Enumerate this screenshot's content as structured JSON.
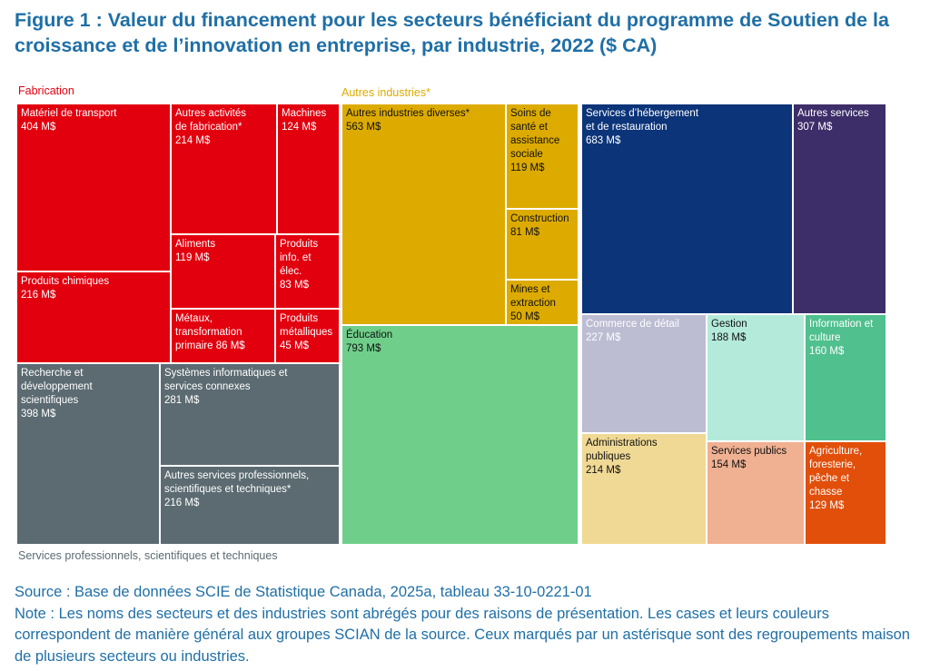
{
  "title": "Figure 1 : Valeur du financement pour les secteurs bénéficiant du programme de Soutien de la croissance et de l’innovation en entreprise, par industrie, 2022 ($ CA)",
  "colors": {
    "fabrication": "#e2000f",
    "autres_industries": "#ddab00",
    "services_pro": "#5c6b72",
    "education": "#6fcf8a",
    "hebergement": "#0b3479",
    "autres_services": "#3d2e6a",
    "commerce": "#bcbcd3",
    "gestion": "#b4eada",
    "information": "#4fc08e",
    "administrations": "#f0d994",
    "services_publics": "#f0b092",
    "agriculture": "#e14f0b",
    "title": "#1f6fa6"
  },
  "group_labels": {
    "fabrication": "Fabrication",
    "autres_industries": "Autres industries*",
    "services_pro": "Services professionnels, scientifiques et techniques"
  },
  "chart_data": {
    "type": "treemap",
    "unit": "M$",
    "groups": [
      {
        "name": "Fabrication",
        "items": [
          {
            "label": "Matériel de transport",
            "value": 404
          },
          {
            "label": "Produits chimiques",
            "value": 216
          },
          {
            "label": "Autres activités de fabrication*",
            "value": 214
          },
          {
            "label": "Machines",
            "value": 124
          },
          {
            "label": "Aliments",
            "value": 119
          },
          {
            "label": "Produits info. et élec.",
            "value": 83
          },
          {
            "label": "Métaux, transformation primaire",
            "value": 86
          },
          {
            "label": "Produits métalliques",
            "value": 45
          }
        ]
      },
      {
        "name": "Services professionnels, scientifiques et techniques",
        "items": [
          {
            "label": "Recherche et développement scientifiques",
            "value": 398
          },
          {
            "label": "Systèmes informatiques et services connexes",
            "value": 281
          },
          {
            "label": "Autres services professionnels, scientifiques et techniques*",
            "value": 216
          }
        ]
      },
      {
        "name": "Autres industries*",
        "items": [
          {
            "label": "Autres industries diverses*",
            "value": 563
          },
          {
            "label": "Soins de santé et assistance sociale",
            "value": 119
          },
          {
            "label": "Construction",
            "value": 81
          },
          {
            "label": "Mines et extraction",
            "value": 50
          },
          {
            "label": "Éducation",
            "value": 793
          },
          {
            "label": "Services d’hébergement et de restauration",
            "value": 683
          },
          {
            "label": "Autres services",
            "value": 307
          },
          {
            "label": "Commerce de détail",
            "value": 227
          },
          {
            "label": "Gestion",
            "value": 188
          },
          {
            "label": "Information et culture",
            "value": 160
          },
          {
            "label": "Administrations publiques",
            "value": 214
          },
          {
            "label": "Services publics",
            "value": 154
          },
          {
            "label": "Agriculture, foresterie, pêche et chasse",
            "value": 129
          }
        ]
      }
    ]
  },
  "cells": [
    {
      "id": "materiel-transport",
      "name": "Matériel de transport",
      "val": "404 M$",
      "color": "#e2000f",
      "text": "#ffffff"
    },
    {
      "id": "produits-chimiques",
      "name": "Produits chimiques",
      "val": "216 M$",
      "color": "#e2000f",
      "text": "#ffffff"
    },
    {
      "id": "autres-fabrication",
      "name": "Autres activités\nde fabrication*",
      "val": "214 M$",
      "color": "#e2000f",
      "text": "#ffffff"
    },
    {
      "id": "machines",
      "name": "Machines",
      "val": "124 M$",
      "color": "#e2000f",
      "text": "#ffffff"
    },
    {
      "id": "aliments",
      "name": "Aliments",
      "val": "119 M$",
      "color": "#e2000f",
      "text": "#ffffff"
    },
    {
      "id": "produits-info",
      "name": "Produits\ninfo. et élec.",
      "val": "83 M$",
      "color": "#e2000f",
      "text": "#ffffff"
    },
    {
      "id": "metaux",
      "name": "Métaux,\ntransformation\nprimaire 86 M$",
      "val": "",
      "color": "#e2000f",
      "text": "#ffffff"
    },
    {
      "id": "produits-metalliques",
      "name": "Produits\nmétalliques",
      "val": "45 M$",
      "color": "#e2000f",
      "text": "#ffffff"
    },
    {
      "id": "recherche",
      "name": "Recherche et\ndéveloppement\nscientifiques",
      "val": "398 M$",
      "color": "#5c6b72",
      "text": "#ffffff"
    },
    {
      "id": "systemes-info",
      "name": "Systèmes informatiques et\nservices connexes",
      "val": "281 M$",
      "color": "#5c6b72",
      "text": "#ffffff"
    },
    {
      "id": "autres-services-pro",
      "name": "Autres services professionnels,\nscientifiques et techniques*",
      "val": "216 M$",
      "color": "#5c6b72",
      "text": "#ffffff"
    },
    {
      "id": "autres-industries-diverses",
      "name": "Autres industries diverses*",
      "val": "563 M$",
      "color": "#ddab00",
      "text": "#111111"
    },
    {
      "id": "soins-sante",
      "name": "Soins de\nsanté et\nassistance\nsociale",
      "val": "119 M$",
      "color": "#ddab00",
      "text": "#111111"
    },
    {
      "id": "construction",
      "name": "Construction",
      "val": "81 M$",
      "color": "#ddab00",
      "text": "#111111"
    },
    {
      "id": "mines",
      "name": "Mines et\nextraction",
      "val": "50 M$",
      "color": "#ddab00",
      "text": "#111111"
    },
    {
      "id": "education",
      "name": "Éducation",
      "val": "793 M$",
      "color": "#6fcf8a",
      "text": "#111111"
    },
    {
      "id": "hebergement",
      "name": "Services d’hébergement\net de restauration",
      "val": "683 M$",
      "color": "#0b3479",
      "text": "#ffffff"
    },
    {
      "id": "autres-services",
      "name": "Autres services",
      "val": "307 M$",
      "color": "#3d2e6a",
      "text": "#ffffff"
    },
    {
      "id": "commerce-detail",
      "name": "Commerce de détail",
      "val": "227 M$",
      "color": "#bcbcd3",
      "text": "#ffffff"
    },
    {
      "id": "gestion",
      "name": "Gestion",
      "val": "188 M$",
      "color": "#b4eada",
      "text": "#111111"
    },
    {
      "id": "information-culture",
      "name": "Information et\nculture",
      "val": "160 M$",
      "color": "#4fc08e",
      "text": "#ffffff"
    },
    {
      "id": "administrations",
      "name": "Administrations\npubliques",
      "val": "214 M$",
      "color": "#f0d994",
      "text": "#111111"
    },
    {
      "id": "services-publics",
      "name": "Services publics",
      "val": "154 M$",
      "color": "#f0b092",
      "text": "#111111"
    },
    {
      "id": "agriculture",
      "name": "Agriculture,\nforesterie,\npêche et\nchasse",
      "val": "129 M$",
      "color": "#e14f0b",
      "text": "#ffffff"
    }
  ],
  "footer": {
    "source": "Source : Base de données SCIE de Statistique Canada, 2025a, tableau 33-10-0221-01",
    "note": "Note : Les noms des secteurs et des industries sont abrégés pour des raisons de présentation. Les cases et leurs couleurs correspondent de manière général aux groupes SCIAN de la source. Ceux marqués par un astérisque sont des regroupements maison de plusieurs secteurs ou industries."
  }
}
